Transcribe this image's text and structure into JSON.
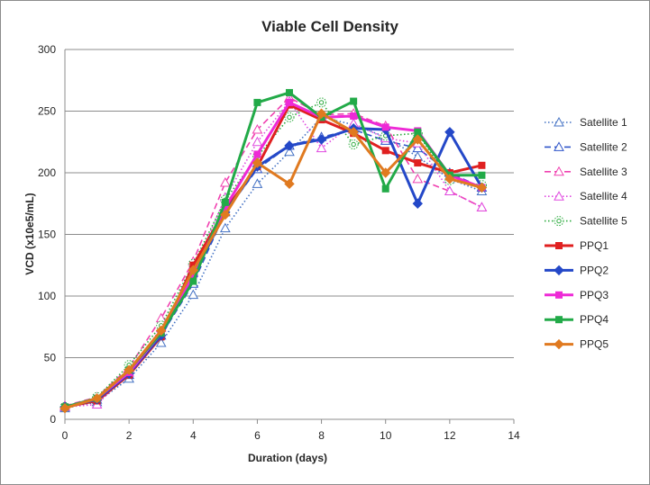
{
  "chart_data": {
    "type": "line",
    "title": "Viable Cell Density",
    "xlabel": "Duration (days)",
    "ylabel": "VCD (x10e5/mL)",
    "xlim": [
      0,
      14
    ],
    "ylim": [
      0,
      300
    ],
    "xticks": [
      0,
      2,
      4,
      6,
      8,
      10,
      12,
      14
    ],
    "yticks": [
      0,
      50,
      100,
      150,
      200,
      250,
      300
    ],
    "grid": "horizontal",
    "legend": "right",
    "series": [
      {
        "name": "Satellite 1",
        "color": "#4472c4",
        "dash": "dotted",
        "marker": "triangle-open",
        "x": [
          0,
          1,
          2,
          3,
          4,
          5,
          6,
          7,
          8,
          9,
          10,
          11,
          12,
          13
        ],
        "y": [
          9,
          14,
          33,
          62,
          101,
          155,
          191,
          217,
          245,
          239,
          229,
          213,
          195,
          185
        ]
      },
      {
        "name": "Satellite 2",
        "color": "#2f55c9",
        "dash": "dashed",
        "marker": "triangle-open",
        "x": [
          0,
          1,
          2,
          3,
          4,
          5,
          6,
          7,
          8,
          9,
          10,
          11,
          12,
          13
        ],
        "y": [
          10,
          16,
          36,
          68,
          110,
          168,
          203,
          222,
          229,
          235,
          226,
          220,
          200,
          188
        ]
      },
      {
        "name": "Satellite 3",
        "color": "#f040b0",
        "dash": "dashed",
        "marker": "triangle-open",
        "x": [
          0,
          1,
          2,
          3,
          4,
          5,
          6,
          7,
          8,
          9,
          10,
          11,
          12,
          13
        ],
        "y": [
          11,
          18,
          42,
          82,
          128,
          192,
          235,
          261,
          247,
          248,
          238,
          195,
          185,
          172
        ]
      },
      {
        "name": "Satellite 4",
        "color": "#e04ae0",
        "dash": "dotted",
        "marker": "triangle-open",
        "x": [
          0,
          1,
          2,
          3,
          4,
          5,
          6,
          7,
          8,
          9,
          10,
          11,
          12,
          13
        ],
        "y": [
          10,
          12,
          38,
          74,
          120,
          180,
          225,
          258,
          220,
          240,
          228,
          224,
          185,
          172
        ]
      },
      {
        "name": "Satellite 5",
        "color": "#2aaa3c",
        "dash": "dotted",
        "marker": "circle-open",
        "x": [
          0,
          1,
          2,
          3,
          4,
          5,
          6,
          7,
          8,
          9,
          10,
          11,
          12,
          13
        ],
        "y": [
          10,
          18,
          44,
          76,
          126,
          178,
          213,
          245,
          257,
          223,
          230,
          232,
          194,
          190
        ]
      },
      {
        "name": "PPQ1",
        "color": "#e02020",
        "dash": "solid",
        "marker": "square",
        "x": [
          0,
          1,
          2,
          3,
          4,
          5,
          6,
          7,
          8,
          9,
          10,
          11,
          12,
          13
        ],
        "y": [
          10,
          15,
          36,
          67,
          125,
          170,
          205,
          255,
          243,
          232,
          218,
          208,
          200,
          206
        ]
      },
      {
        "name": "PPQ2",
        "color": "#2448c8",
        "dash": "solid",
        "marker": "diamond",
        "x": [
          0,
          1,
          2,
          3,
          4,
          5,
          6,
          7,
          8,
          9,
          10,
          11,
          12,
          13
        ],
        "y": [
          10,
          16,
          37,
          68,
          116,
          168,
          205,
          222,
          227,
          236,
          235,
          175,
          233,
          188
        ]
      },
      {
        "name": "PPQ3",
        "color": "#ee2ad6",
        "dash": "solid",
        "marker": "square",
        "x": [
          0,
          1,
          2,
          3,
          4,
          5,
          6,
          7,
          8,
          9,
          10,
          11,
          12,
          13
        ],
        "y": [
          10,
          17,
          38,
          70,
          117,
          172,
          215,
          257,
          245,
          246,
          237,
          234,
          198,
          188
        ]
      },
      {
        "name": "PPQ4",
        "color": "#22aa48",
        "dash": "solid",
        "marker": "square",
        "x": [
          0,
          1,
          2,
          3,
          4,
          5,
          6,
          7,
          8,
          9,
          10,
          11,
          12,
          13
        ],
        "y": [
          10,
          17,
          40,
          70,
          112,
          176,
          257,
          265,
          245,
          258,
          187,
          233,
          198,
          198
        ]
      },
      {
        "name": "PPQ5",
        "color": "#e07a20",
        "dash": "solid",
        "marker": "diamond",
        "x": [
          0,
          1,
          2,
          3,
          4,
          5,
          6,
          7,
          8,
          9,
          10,
          11,
          12,
          13
        ],
        "y": [
          9,
          17,
          40,
          72,
          121,
          166,
          208,
          191,
          248,
          233,
          200,
          227,
          195,
          188
        ]
      }
    ]
  }
}
